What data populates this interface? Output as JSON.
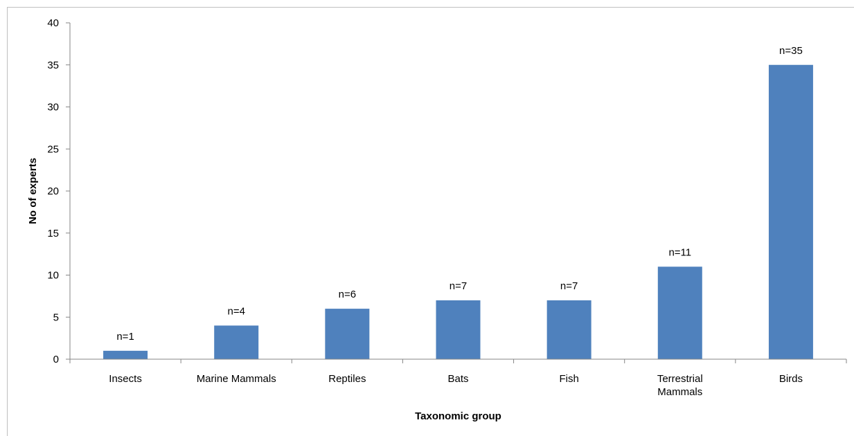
{
  "chart_data": {
    "type": "bar",
    "categories": [
      [
        "Insects"
      ],
      [
        "Marine Mammals"
      ],
      [
        "Reptiles"
      ],
      [
        "Bats"
      ],
      [
        "Fish"
      ],
      [
        "Terrestrial",
        "Mammals"
      ],
      [
        "Birds"
      ]
    ],
    "values": [
      1,
      4,
      6,
      7,
      7,
      11,
      35
    ],
    "data_labels": [
      "n=1",
      "n=4",
      "n=6",
      "n=7",
      "n=7",
      "n=11",
      "n=35"
    ],
    "xlabel": "Taxonomic group",
    "ylabel": "No of experts",
    "ylim": [
      0,
      40
    ],
    "yticks": [
      0,
      5,
      10,
      15,
      20,
      25,
      30,
      35,
      40
    ],
    "grid": false,
    "legend": "none",
    "colors": {
      "bar": "#4f81bd",
      "axis": "#868686",
      "text": "#000000"
    }
  }
}
